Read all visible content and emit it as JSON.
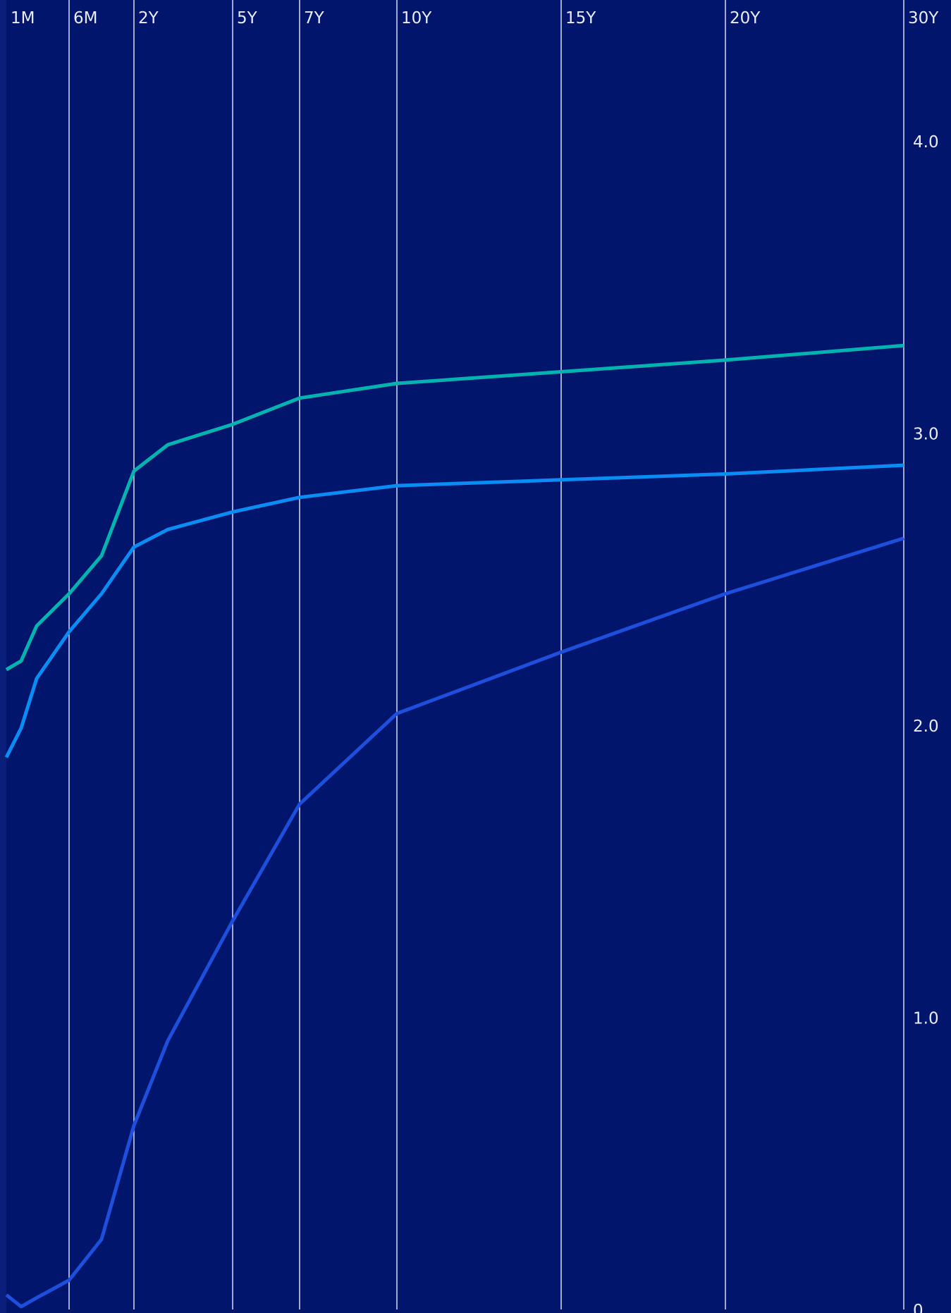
{
  "chart_data": {
    "type": "line",
    "title": "",
    "xlabel": "",
    "ylabel": "",
    "grid": true,
    "x_axis_position": "top",
    "y_axis_position": "right",
    "background_color": "#00156b",
    "x_tick_labels": [
      "1M",
      "6M",
      "2Y",
      "5Y",
      "7Y",
      "10Y",
      "15Y",
      "20Y",
      "30Y"
    ],
    "y_tick_values": [
      0,
      1.0,
      2.0,
      3.0,
      4.0
    ],
    "y_tick_labels": [
      "0",
      "1.0",
      "2.0",
      "3.0",
      "4.0"
    ],
    "ylim": [
      0,
      4.4
    ],
    "x": [
      "0.5M",
      "1M",
      "3M",
      "6M",
      "1Y",
      "2Y",
      "3Y",
      "5Y",
      "7Y",
      "10Y",
      "15Y",
      "20Y",
      "30Y"
    ],
    "series": [
      {
        "color": "#00b3b0",
        "values": [
          2.19,
          2.22,
          2.34,
          2.45,
          2.58,
          2.87,
          2.96,
          3.03,
          3.12,
          3.17,
          3.21,
          3.25,
          3.3
        ]
      },
      {
        "color": "#0a8cf5",
        "values": [
          1.89,
          1.99,
          2.16,
          2.32,
          2.45,
          2.61,
          2.67,
          2.73,
          2.78,
          2.82,
          2.84,
          2.86,
          2.89
        ]
      },
      {
        "color": "#1e4fdc",
        "values": [
          0.05,
          0.01,
          0.04,
          0.1,
          0.24,
          0.63,
          0.92,
          1.33,
          1.73,
          2.04,
          2.25,
          2.45,
          2.64
        ]
      }
    ]
  }
}
